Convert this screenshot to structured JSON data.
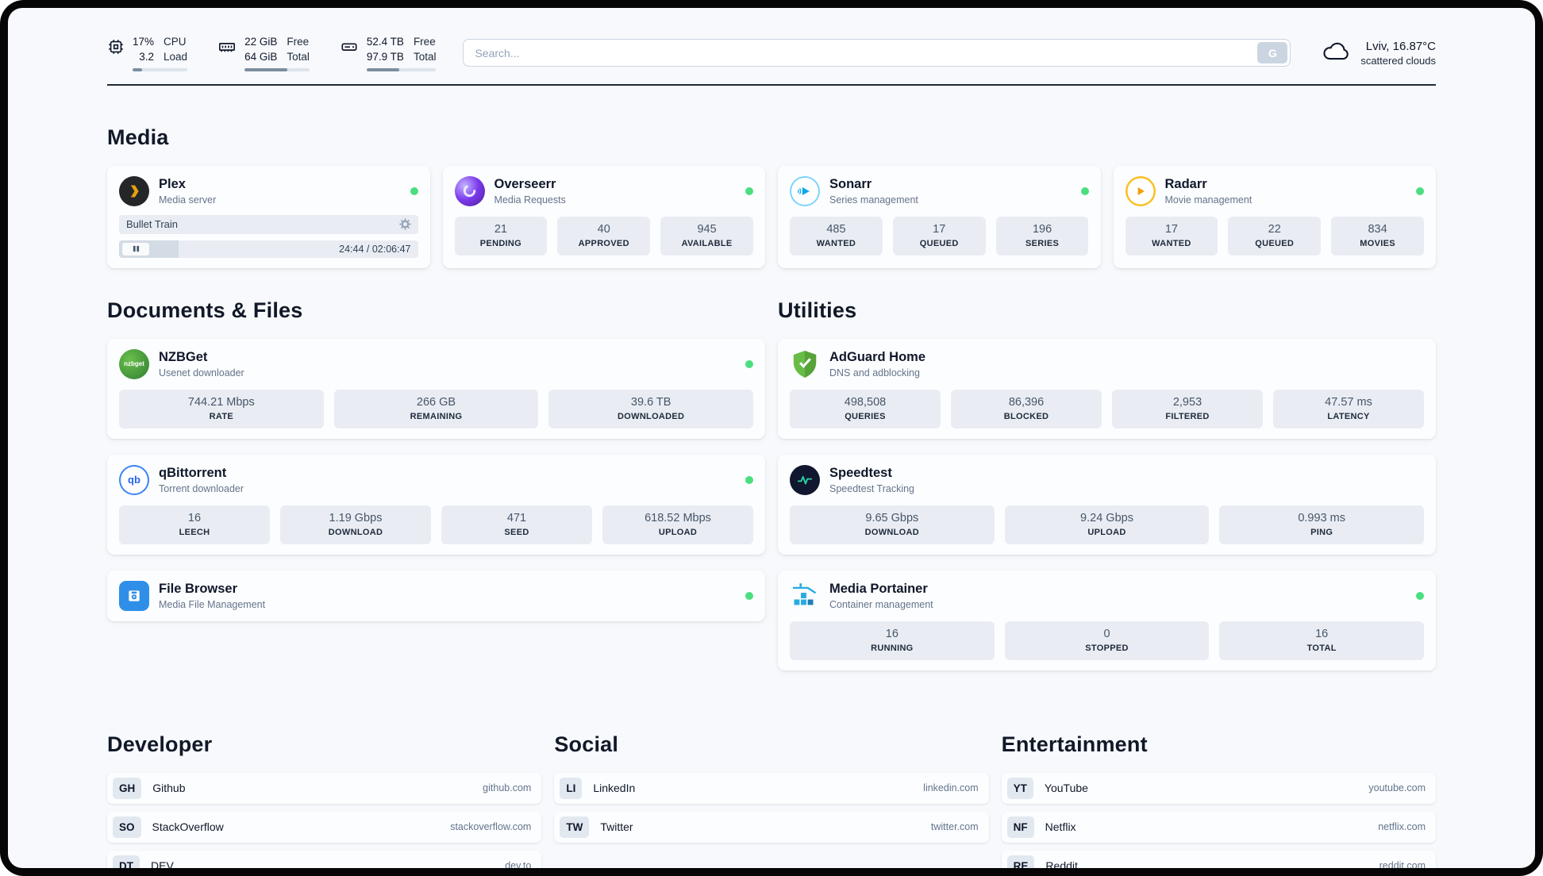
{
  "colors": {
    "status_online": "#4ade80",
    "accent": "#1f2937"
  },
  "topbar": {
    "cpu": {
      "value_top": "17%",
      "value_bottom": "3.2",
      "label_top": "CPU",
      "label_bottom": "Load",
      "bar_percent": 17
    },
    "ram": {
      "value_top": "22 GiB",
      "value_bottom": "64 GiB",
      "label_top": "Free",
      "label_bottom": "Total",
      "bar_percent": 66
    },
    "disk": {
      "value_top": "52.4 TB",
      "value_bottom": "97.9 TB",
      "label_top": "Free",
      "label_bottom": "Total",
      "bar_percent": 47
    },
    "search": {
      "placeholder": "Search...",
      "button_label": "G"
    },
    "weather": {
      "location": "Lviv, 16.87°C",
      "condition": "scattered clouds"
    }
  },
  "sections": {
    "media": {
      "title": "Media",
      "plex": {
        "name": "Plex",
        "subtitle": "Media server",
        "now_playing": "Bullet Train",
        "time": "24:44 / 02:06:47",
        "progress_percent": 20
      },
      "overseerr": {
        "name": "Overseerr",
        "subtitle": "Media Requests",
        "stats": [
          {
            "value": "21",
            "label": "PENDING"
          },
          {
            "value": "40",
            "label": "APPROVED"
          },
          {
            "value": "945",
            "label": "AVAILABLE"
          }
        ]
      },
      "sonarr": {
        "name": "Sonarr",
        "subtitle": "Series management",
        "stats": [
          {
            "value": "485",
            "label": "WANTED"
          },
          {
            "value": "17",
            "label": "QUEUED"
          },
          {
            "value": "196",
            "label": "SERIES"
          }
        ]
      },
      "radarr": {
        "name": "Radarr",
        "subtitle": "Movie management",
        "stats": [
          {
            "value": "17",
            "label": "WANTED"
          },
          {
            "value": "22",
            "label": "QUEUED"
          },
          {
            "value": "834",
            "label": "MOVIES"
          }
        ]
      }
    },
    "documents": {
      "title": "Documents & Files",
      "nzbget": {
        "name": "NZBGet",
        "subtitle": "Usenet downloader",
        "icon_text": "nzbget",
        "stats": [
          {
            "value": "744.21 Mbps",
            "label": "RATE"
          },
          {
            "value": "266 GB",
            "label": "REMAINING"
          },
          {
            "value": "39.6 TB",
            "label": "DOWNLOADED"
          }
        ]
      },
      "qbittorrent": {
        "name": "qBittorrent",
        "subtitle": "Torrent downloader",
        "icon_text": "qb",
        "stats": [
          {
            "value": "16",
            "label": "LEECH"
          },
          {
            "value": "1.19 Gbps",
            "label": "DOWNLOAD"
          },
          {
            "value": "471",
            "label": "SEED"
          },
          {
            "value": "618.52 Mbps",
            "label": "UPLOAD"
          }
        ]
      },
      "filebrowser": {
        "name": "File Browser",
        "subtitle": "Media File Management"
      }
    },
    "utilities": {
      "title": "Utilities",
      "adguard": {
        "name": "AdGuard Home",
        "subtitle": "DNS and adblocking",
        "stats": [
          {
            "value": "498,508",
            "label": "QUERIES"
          },
          {
            "value": "86,396",
            "label": "BLOCKED"
          },
          {
            "value": "2,953",
            "label": "FILTERED"
          },
          {
            "value": "47.57 ms",
            "label": "LATENCY"
          }
        ]
      },
      "speedtest": {
        "name": "Speedtest",
        "subtitle": "Speedtest Tracking",
        "stats": [
          {
            "value": "9.65 Gbps",
            "label": "DOWNLOAD"
          },
          {
            "value": "9.24 Gbps",
            "label": "UPLOAD"
          },
          {
            "value": "0.993 ms",
            "label": "PING"
          }
        ]
      },
      "portainer": {
        "name": "Media Portainer",
        "subtitle": "Container management",
        "stats": [
          {
            "value": "16",
            "label": "RUNNING"
          },
          {
            "value": "0",
            "label": "STOPPED"
          },
          {
            "value": "16",
            "label": "TOTAL"
          }
        ]
      }
    },
    "bookmarks": {
      "developer": {
        "title": "Developer",
        "items": [
          {
            "abbr": "GH",
            "name": "Github",
            "url": "github.com"
          },
          {
            "abbr": "SO",
            "name": "StackOverflow",
            "url": "stackoverflow.com"
          },
          {
            "abbr": "DT",
            "name": "DEV",
            "url": "dev.to"
          }
        ]
      },
      "social": {
        "title": "Social",
        "items": [
          {
            "abbr": "LI",
            "name": "LinkedIn",
            "url": "linkedin.com"
          },
          {
            "abbr": "TW",
            "name": "Twitter",
            "url": "twitter.com"
          }
        ]
      },
      "entertainment": {
        "title": "Entertainment",
        "items": [
          {
            "abbr": "YT",
            "name": "YouTube",
            "url": "youtube.com"
          },
          {
            "abbr": "NF",
            "name": "Netflix",
            "url": "netflix.com"
          },
          {
            "abbr": "RE",
            "name": "Reddit",
            "url": "reddit.com"
          }
        ]
      }
    }
  }
}
